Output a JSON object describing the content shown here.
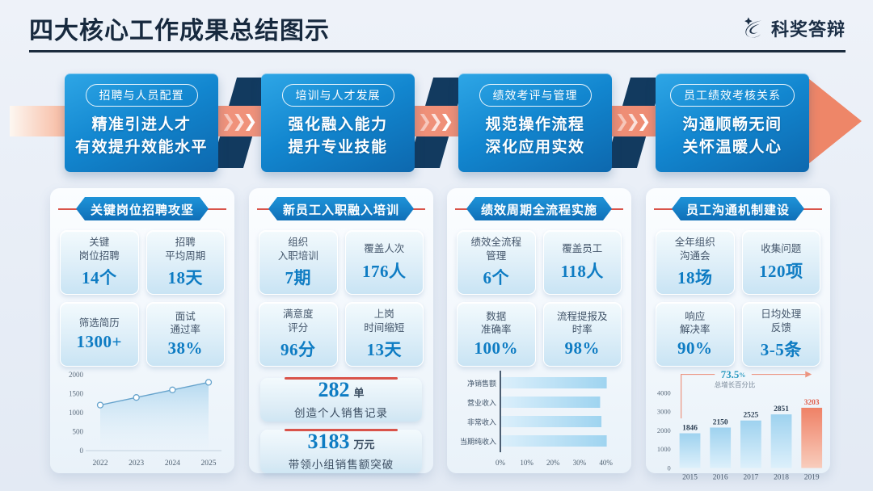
{
  "page": {
    "title": "四大核心工作成果总结图示",
    "brand": "科奖答辩"
  },
  "decor": {
    "chevron": "❯"
  },
  "colors": {
    "accent_blue": "#1286cf",
    "accent_red": "#d9534a",
    "salmon": "#ee8b72",
    "value_blue": "#0e7cc3",
    "fold_navy": "#123a5f"
  },
  "flow": [
    {
      "pill": "招聘与人员配置",
      "line1": "精准引进人才",
      "line2": "有效提升效能水平"
    },
    {
      "pill": "培训与人才发展",
      "line1": "强化融入能力",
      "line2": "提升专业技能"
    },
    {
      "pill": "绩效考评与管理",
      "line1": "规范操作流程",
      "line2": "深化应用实效"
    },
    {
      "pill": "员工绩效考核关系",
      "line1": "沟通顺畅无间",
      "line2": "关怀温暖人心"
    }
  ],
  "cards": [
    {
      "banner": "关键岗位招聘攻坚",
      "stats": [
        {
          "label": "关键\n岗位招聘",
          "value": "14个"
        },
        {
          "label": "招聘\n平均周期",
          "value": "18天"
        },
        {
          "label": "筛选简历",
          "value": "1300+"
        },
        {
          "label": "面试\n通过率",
          "value": "38%"
        }
      ]
    },
    {
      "banner": "新员工入职融入培训",
      "stats": [
        {
          "label": "组织\n入职培训",
          "value": "7期"
        },
        {
          "label": "覆盖人次",
          "value": "176人"
        },
        {
          "label": "满意度\n评分",
          "value": "96分"
        },
        {
          "label": "上岗\n时间缩短",
          "value": "13天"
        }
      ],
      "highlights": [
        {
          "num": "282",
          "unit": "单",
          "desc": "创造个人销售记录"
        },
        {
          "num": "3183",
          "unit": "万元",
          "desc": "带领小组销售额突破"
        }
      ]
    },
    {
      "banner": "绩效周期全流程实施",
      "stats": [
        {
          "label": "绩效全流程\n管理",
          "value": "6个"
        },
        {
          "label": "覆盖员工",
          "value": "118人"
        },
        {
          "label": "数据\n准确率",
          "value": "100%"
        },
        {
          "label": "流程提报及\n时率",
          "value": "98%"
        }
      ]
    },
    {
      "banner": "员工沟通机制建设",
      "stats": [
        {
          "label": "全年组织\n沟通会",
          "value": "18场"
        },
        {
          "label": "收集问题",
          "value": "120项"
        },
        {
          "label": "响应\n解决率",
          "value": "90%"
        },
        {
          "label": "日均处理\n反馈",
          "value": "3-5条"
        }
      ]
    }
  ],
  "chart_data": [
    {
      "type": "line",
      "x": [
        "2022",
        "2023",
        "2024",
        "2025"
      ],
      "values": [
        1200,
        1400,
        1600,
        1800
      ],
      "ylim": [
        0,
        2000
      ],
      "yticks": [
        0,
        500,
        1000,
        1500,
        2000
      ],
      "grid": false,
      "legend": "none",
      "area_fill": true
    },
    {
      "type": "bar",
      "orientation": "horizontal",
      "categories": [
        "净销售额",
        "营业收入",
        "非常收入",
        "当期纯收入"
      ],
      "values": [
        40,
        37.5,
        38,
        40
      ],
      "xticks": [
        0,
        10,
        20,
        30,
        40
      ],
      "xlim": [
        0,
        43.5
      ],
      "unit": "%",
      "grid": false,
      "legend": "none"
    },
    {
      "type": "bar",
      "orientation": "vertical",
      "categories": [
        "2015",
        "2016",
        "2017",
        "2018",
        "2019"
      ],
      "values": [
        1846,
        2150,
        2525,
        2851,
        3203
      ],
      "ylim": [
        0,
        4000
      ],
      "yticks": [
        0,
        1000,
        2000,
        3000,
        4000
      ],
      "highlight_last": true,
      "grid": false,
      "legend": "none",
      "annotation": {
        "growth": "73.5",
        "unit": "%",
        "label": "总增长百分比"
      }
    }
  ]
}
